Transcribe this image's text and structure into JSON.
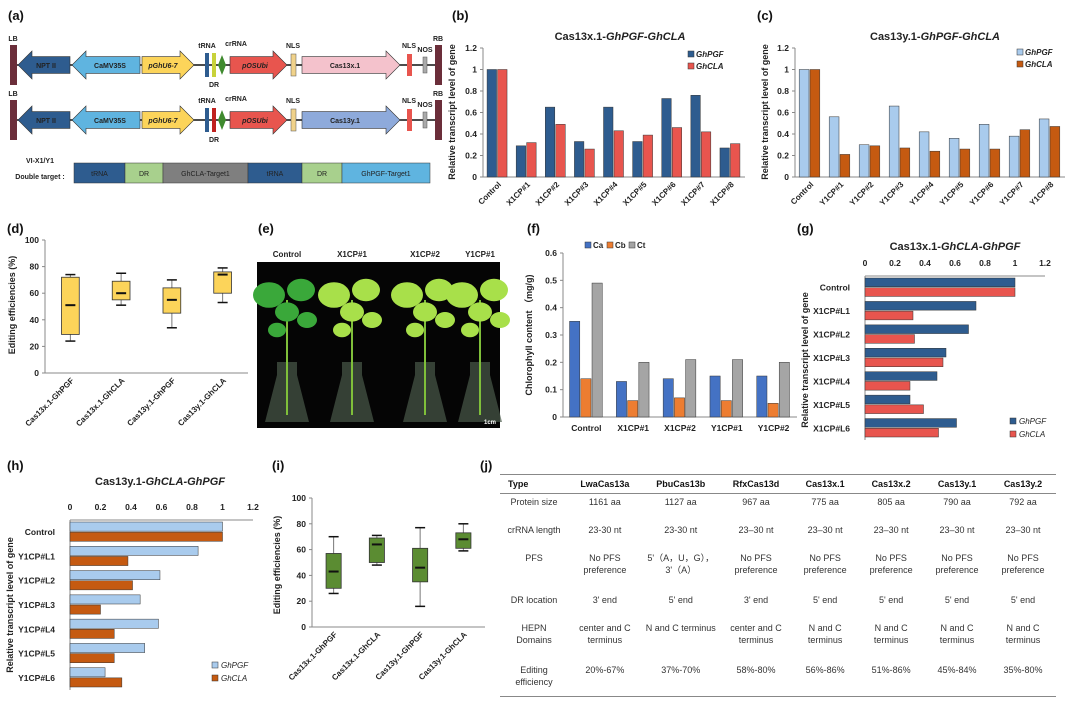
{
  "panel_labels": {
    "a": "(a)",
    "b": "(b)",
    "c": "(c)",
    "d": "(d)",
    "e": "(e)",
    "f": "(f)",
    "g": "(g)",
    "h": "(h)",
    "i": "(i)",
    "j": "(j)"
  },
  "diagram": {
    "constructs": [
      {
        "LB": "LB",
        "NPTII": "NPT II",
        "CaMV35S": "CaMV35S",
        "pGhU6": "pGhU6-7",
        "tRNA": "tRNA",
        "DR": "DR",
        "crRNA": "crRNA",
        "pOSUbi": "pOSUbi",
        "NLS1": "NLS",
        "cas": "Cas13x.1",
        "NLS2": "NLS",
        "NOS": "NOS",
        "RB": "RB",
        "cas_color": "#f4c2cc",
        "dr_color": "#c8d23a"
      },
      {
        "LB": "LB",
        "NPTII": "NPT II",
        "CaMV35S": "CaMV35S",
        "pGhU6": "pGhU6-7",
        "tRNA": "tRNA",
        "DR": "DR",
        "crRNA": "crRNA",
        "pOSUbi": "pOSUbi",
        "NLS1": "NLS",
        "cas": "Cas13y.1",
        "NLS2": "NLS",
        "NOS": "NOS",
        "RB": "RB",
        "cas_color": "#8eaadb",
        "dr_color": "#c0211f"
      }
    ],
    "double_target_label1": "VI-X1/Y1",
    "double_target_label2": "Double target :",
    "double_target": [
      "tRNA",
      "DR",
      "GhCLA-Target1",
      "tRNA",
      "DR",
      "GhPGF-Target1"
    ]
  },
  "photo": {
    "labels": [
      "Control",
      "X1CP#1",
      "X1CP#2",
      "Y1CP#1"
    ],
    "scale": "1cm"
  },
  "chart_data": [
    {
      "panel": "b",
      "type": "bar",
      "title": "Cas13x.1-",
      "title_italic": "GhPGF-GhCLA",
      "ylabel": "Relative transcript level of gene",
      "ylim": [
        0,
        1.2
      ],
      "yticks": [
        0,
        0.2,
        0.4,
        0.6,
        0.8,
        1,
        1.2
      ],
      "categories": [
        "Control",
        "X1CP#1",
        "X1CP#2",
        "X1CP#3",
        "X1CP#4",
        "X1CP#5",
        "X1CP#6",
        "X1CP#7",
        "X1CP#8"
      ],
      "series": [
        {
          "name": "GhPGF",
          "color": "#2e5c8f",
          "values": [
            1,
            0.29,
            0.65,
            0.33,
            0.65,
            0.33,
            0.73,
            0.76,
            0.27
          ]
        },
        {
          "name": "GhCLA",
          "color": "#e8554e",
          "values": [
            1,
            0.32,
            0.49,
            0.26,
            0.43,
            0.39,
            0.46,
            0.42,
            0.31
          ]
        }
      ]
    },
    {
      "panel": "c",
      "type": "bar",
      "title": "Cas13y.1-",
      "title_italic": "GhPGF-GhCLA",
      "ylabel": "Relative transcript level of gene",
      "ylim": [
        0,
        1.2
      ],
      "yticks": [
        0,
        0.2,
        0.4,
        0.6,
        0.8,
        1,
        1.2
      ],
      "categories": [
        "Control",
        "Y1CP#1",
        "Y1CP#2",
        "Y1CP#3",
        "Y1CP#4",
        "Y1CP#5",
        "Y1CP#6",
        "Y1CP#7",
        "Y1CP#8"
      ],
      "series": [
        {
          "name": "GhPGF",
          "color": "#a9cbed",
          "values": [
            1,
            0.56,
            0.3,
            0.66,
            0.42,
            0.36,
            0.49,
            0.38,
            0.54
          ]
        },
        {
          "name": "GhCLA",
          "color": "#c55a11",
          "values": [
            1,
            0.21,
            0.29,
            0.27,
            0.24,
            0.26,
            0.26,
            0.44,
            0.47
          ]
        }
      ]
    },
    {
      "panel": "d",
      "type": "box",
      "ylabel": "Editing efficiencies (%)",
      "ylim": [
        0,
        100
      ],
      "yticks": [
        0,
        20,
        40,
        60,
        80,
        100
      ],
      "color": "#fcd45a",
      "categories": [
        "Cas13x.1-GhPGF",
        "Cas13x.1-GhCLA",
        "Cas13y.1-GhPGF",
        "Cas13y.1-GhCLA"
      ],
      "boxes": [
        {
          "min": 24,
          "q1": 29,
          "median": 51,
          "q3": 72,
          "max": 74
        },
        {
          "min": 51,
          "q1": 55,
          "median": 60,
          "q3": 69,
          "max": 75
        },
        {
          "min": 34,
          "q1": 45,
          "median": 55,
          "q3": 64,
          "max": 70
        },
        {
          "min": 53,
          "q1": 60,
          "median": 74,
          "q3": 76,
          "max": 79
        }
      ]
    },
    {
      "panel": "f",
      "type": "bar",
      "ylabel": "Chlorophyll content （mg/g)",
      "ylim": [
        0,
        0.6
      ],
      "yticks": [
        0,
        0.1,
        0.2,
        0.3,
        0.4,
        0.5,
        0.6
      ],
      "categories": [
        "Control",
        "X1CP#1",
        "X1CP#2",
        "Y1CP#1",
        "Y1CP#2"
      ],
      "series": [
        {
          "name": "Ca",
          "color": "#4472c4",
          "values": [
            0.35,
            0.13,
            0.14,
            0.15,
            0.15
          ]
        },
        {
          "name": "Cb",
          "color": "#ed7d31",
          "values": [
            0.14,
            0.06,
            0.07,
            0.06,
            0.05
          ]
        },
        {
          "name": "Ct",
          "color": "#a5a5a5",
          "values": [
            0.49,
            0.2,
            0.21,
            0.21,
            0.2
          ]
        }
      ]
    },
    {
      "panel": "g",
      "type": "bar",
      "orientation": "horizontal",
      "title": "Cas13x.1-",
      "title_italic": "GhCLA-GhPGF",
      "ylabel": "Relative transcript level of gene",
      "xlim": [
        0,
        1.2
      ],
      "xticks": [
        0,
        0.2,
        0.4,
        0.6,
        0.8,
        1,
        1.2
      ],
      "categories": [
        "Control",
        "X1CP#L1",
        "X1CP#L2",
        "X1CP#L3",
        "X1CP#L4",
        "X1CP#L5",
        "X1CP#L6"
      ],
      "series": [
        {
          "name": "GhPGF",
          "color": "#2e5c8f",
          "values": [
            1,
            0.74,
            0.69,
            0.54,
            0.48,
            0.3,
            0.61
          ]
        },
        {
          "name": "GhCLA",
          "color": "#e8554e",
          "values": [
            1,
            0.32,
            0.33,
            0.52,
            0.3,
            0.39,
            0.49
          ]
        }
      ]
    },
    {
      "panel": "h",
      "type": "bar",
      "orientation": "horizontal",
      "title": "Cas13y.1-",
      "title_italic": "GhCLA-GhPGF",
      "ylabel": "Relative transcript level of gene",
      "xlim": [
        0,
        1.2
      ],
      "xticks": [
        0,
        0.2,
        0.4,
        0.6,
        0.8,
        1,
        1.2
      ],
      "categories": [
        "Control",
        "Y1CP#L1",
        "Y1CP#L2",
        "Y1CP#L3",
        "Y1CP#L4",
        "Y1CP#L5",
        "Y1CP#L6"
      ],
      "series": [
        {
          "name": "GhPGF",
          "color": "#a9cbed",
          "values": [
            1,
            0.84,
            0.59,
            0.46,
            0.58,
            0.49,
            0.23
          ]
        },
        {
          "name": "GhCLA",
          "color": "#c55a11",
          "values": [
            1,
            0.38,
            0.41,
            0.2,
            0.29,
            0.29,
            0.34
          ]
        }
      ]
    },
    {
      "panel": "i",
      "type": "box",
      "ylabel": "Editing efficiencies (%)",
      "ylim": [
        0,
        100
      ],
      "yticks": [
        0,
        20,
        40,
        60,
        80,
        100
      ],
      "color": "#5b8c32",
      "categories": [
        "Cas13x.1-GhPGF",
        "Cas13x.1-GhCLA",
        "Cas13y.1-GhPGF",
        "Cas13y.1-GhCLA"
      ],
      "boxes": [
        {
          "min": 26,
          "q1": 30,
          "median": 43,
          "q3": 57,
          "max": 70
        },
        {
          "min": 48,
          "q1": 50,
          "median": 64,
          "q3": 69,
          "max": 71
        },
        {
          "min": 16,
          "q1": 35,
          "median": 46,
          "q3": 61,
          "max": 77
        },
        {
          "min": 59,
          "q1": 61,
          "median": 68,
          "q3": 73,
          "max": 80
        }
      ]
    }
  ],
  "table": {
    "headers": [
      "Type",
      "LwaCas13a",
      "PbuCas13b",
      "RfxCas13d",
      "Cas13x.1",
      "Cas13x.2",
      "Cas13y.1",
      "Cas13y.2"
    ],
    "rows": [
      {
        "label": "Protein size",
        "cells": [
          "1161 aa",
          "1127 aa",
          "967 aa",
          "775 aa",
          "805 aa",
          "790 aa",
          "792 aa"
        ]
      },
      {
        "label": "crRNA length",
        "cells": [
          "23-30 nt",
          "23-30 nt",
          "23–30 nt",
          "23–30 nt",
          "23–30 nt",
          "23–30 nt",
          "23–30 nt"
        ]
      },
      {
        "label": "PFS",
        "cells": [
          "No PFS preference",
          "5'（A，U，G），3'（A）",
          "No PFS preference",
          "No PFS preference",
          "No PFS preference",
          "No PFS preference",
          "No PFS preference"
        ]
      },
      {
        "label": "DR location",
        "cells": [
          "3' end",
          "5' end",
          "3' end",
          "5' end",
          "5' end",
          "5' end",
          "5' end"
        ]
      },
      {
        "label": "HEPN Domains",
        "cells": [
          "center and C terminus",
          "N and C terminus",
          "center and C terminus",
          "N and C terminus",
          "N and C terminus",
          "N and C terminus",
          "N and C terminus"
        ]
      },
      {
        "label": "Editing efficiency",
        "cells": [
          "20%-67%",
          "37%-70%",
          "58%-80%",
          "56%-86%",
          "51%-86%",
          "45%-84%",
          "35%-80%"
        ]
      }
    ]
  }
}
